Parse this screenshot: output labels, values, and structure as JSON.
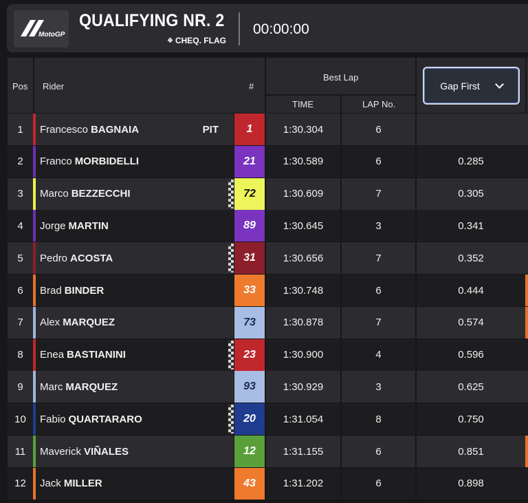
{
  "header": {
    "logo_text": "MotoGP",
    "session_title": "QUALIFYING NR. 2",
    "flag_status": "CHEQ. FLAG",
    "timer": "00:00:00"
  },
  "table": {
    "col_pos": "Pos",
    "col_rider": "Rider",
    "col_number": "#",
    "col_best_lap": "Best Lap",
    "col_time": "TIME",
    "col_lap_no": "LAP No.",
    "gap_select_value": "Gap First",
    "pit_label": "PIT",
    "rows": [
      {
        "pos": "1",
        "first": "Francesco",
        "last": "BAGNAIA",
        "number": "1",
        "time": "1:30.304",
        "lap": "6",
        "gap": "",
        "team_color": "#c0272d",
        "num_bg": "#c0272d",
        "num_fg": "#ffffff",
        "pit": true,
        "chequered": false
      },
      {
        "pos": "2",
        "first": "Franco",
        "last": "MORBIDELLI",
        "number": "21",
        "time": "1:30.589",
        "lap": "6",
        "gap": "0.285",
        "team_color": "#6d2fb4",
        "num_bg": "#7a34c0",
        "num_fg": "#ffffff",
        "pit": false,
        "chequered": false
      },
      {
        "pos": "3",
        "first": "Marco",
        "last": "BEZZECCHI",
        "number": "72",
        "time": "1:30.609",
        "lap": "7",
        "gap": "0.305",
        "team_color": "#e9f24a",
        "num_bg": "#ecf55a",
        "num_fg": "#111111",
        "pit": false,
        "chequered": true
      },
      {
        "pos": "4",
        "first": "Jorge",
        "last": "MARTIN",
        "number": "89",
        "time": "1:30.645",
        "lap": "3",
        "gap": "0.341",
        "team_color": "#6d2fb4",
        "num_bg": "#7a34c0",
        "num_fg": "#ffffff",
        "pit": false,
        "chequered": false
      },
      {
        "pos": "5",
        "first": "Pedro",
        "last": "ACOSTA",
        "number": "31",
        "time": "1:30.656",
        "lap": "7",
        "gap": "0.352",
        "team_color": "#8a1f2b",
        "num_bg": "#8c1f2c",
        "num_fg": "#ffffff",
        "pit": false,
        "chequered": true
      },
      {
        "pos": "6",
        "first": "Brad",
        "last": "BINDER",
        "number": "33",
        "time": "1:30.748",
        "lap": "6",
        "gap": "0.444",
        "team_color": "#e8722a",
        "num_bg": "#ee7a2e",
        "num_fg": "#ffffff",
        "pit": false,
        "chequered": false
      },
      {
        "pos": "7",
        "first": "Alex",
        "last": "MARQUEZ",
        "number": "73",
        "time": "1:30.878",
        "lap": "7",
        "gap": "0.574",
        "team_color": "#9fb4da",
        "num_bg": "#a8bde3",
        "num_fg": "#1a2a4a",
        "pit": false,
        "chequered": false
      },
      {
        "pos": "8",
        "first": "Enea",
        "last": "BASTIANINI",
        "number": "23",
        "time": "1:30.900",
        "lap": "4",
        "gap": "0.596",
        "team_color": "#c0272d",
        "num_bg": "#c0272d",
        "num_fg": "#ffffff",
        "pit": false,
        "chequered": true
      },
      {
        "pos": "9",
        "first": "Marc",
        "last": "MARQUEZ",
        "number": "93",
        "time": "1:30.929",
        "lap": "3",
        "gap": "0.625",
        "team_color": "#9fb4da",
        "num_bg": "#a8bde3",
        "num_fg": "#1a2a4a",
        "pit": false,
        "chequered": false
      },
      {
        "pos": "10",
        "first": "Fabio",
        "last": "QUARTARARO",
        "number": "20",
        "time": "1:31.054",
        "lap": "8",
        "gap": "0.750",
        "team_color": "#1f3c8f",
        "num_bg": "#1f3c8f",
        "num_fg": "#ffffff",
        "pit": false,
        "chequered": true
      },
      {
        "pos": "11",
        "first": "Maverick",
        "last": "VIÑALES",
        "number": "12",
        "time": "1:31.155",
        "lap": "6",
        "gap": "0.851",
        "team_color": "#5aa03a",
        "num_bg": "#5aa03a",
        "num_fg": "#ffffff",
        "pit": false,
        "chequered": false
      },
      {
        "pos": "12",
        "first": "Jack",
        "last": "MILLER",
        "number": "43",
        "time": "1:31.202",
        "lap": "6",
        "gap": "0.898",
        "team_color": "#e8722a",
        "num_bg": "#ee7a2e",
        "num_fg": "#ffffff",
        "pit": false,
        "chequered": false
      }
    ]
  },
  "colors": {
    "row_even": "#2c2c30",
    "row_odd": "#1d1d20",
    "header_bg": "#2a2a2e",
    "select_border": "#cfd6e6"
  }
}
